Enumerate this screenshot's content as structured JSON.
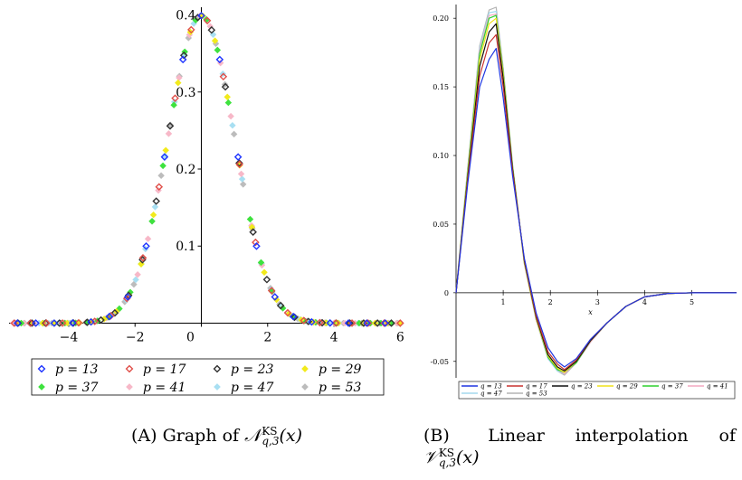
{
  "colors": {
    "p13": "#1f35ff",
    "p17": "#e0504a",
    "p23": "#333333",
    "p29": "#f2ea1c",
    "p37": "#3ee23e",
    "p41": "#f7b8c8",
    "p47": "#a8dff2",
    "p53": "#bcbcbc",
    "q13": "#1f35e0",
    "q17": "#c8322e",
    "q23": "#111111",
    "q29": "#f0e21a",
    "q37": "#2fd02f",
    "q41": "#f4a9c0",
    "q47": "#a3d9ee",
    "q53": "#b4b4b4"
  },
  "chart_data": [
    {
      "type": "scatter",
      "title": "",
      "xlabel": "",
      "ylabel": "",
      "xlim": [
        -5.8,
        6.1
      ],
      "ylim": [
        -0.01,
        0.41
      ],
      "xticks": [
        "-4",
        "-2",
        "0",
        "2",
        "4",
        "6"
      ],
      "yticks": [
        "0.1",
        "0.2",
        "0.3",
        "0.4"
      ],
      "legend_position": "bottom",
      "series": [
        {
          "name": "p = 13",
          "marker": "diamond-open"
        },
        {
          "name": "p = 17",
          "marker": "diamond-open"
        },
        {
          "name": "p = 23",
          "marker": "diamond-open"
        },
        {
          "name": "p = 29",
          "marker": "diamond"
        },
        {
          "name": "p = 37",
          "marker": "diamond"
        },
        {
          "name": "p = 41",
          "marker": "diamond"
        },
        {
          "name": "p = 47",
          "marker": "diamond"
        },
        {
          "name": "p = 53",
          "marker": "diamond"
        }
      ],
      "points_function": "standard normal density 0.399*exp(-x^2/2), sampled at spacing 2/sqrt(p) for each p"
    },
    {
      "type": "line",
      "title": "",
      "xlabel": "x",
      "ylabel": "",
      "xlim": [
        0,
        5.95
      ],
      "ylim": [
        -0.062,
        0.21
      ],
      "xticks": [
        "1",
        "2",
        "3",
        "4",
        "5"
      ],
      "yticks": [
        "-0.05",
        "0",
        "0.05",
        "0.10",
        "0.15",
        "0.20"
      ],
      "legend_position": "bottom",
      "x": [
        0,
        0.25,
        0.5,
        0.7,
        0.85,
        1.0,
        1.2,
        1.45,
        1.7,
        1.95,
        2.15,
        2.3,
        2.55,
        2.85,
        3.2,
        3.6,
        4.0,
        4.5,
        5.0,
        5.95
      ],
      "series": [
        {
          "name": "q = 13",
          "values": [
            0,
            0.08,
            0.15,
            0.17,
            0.178,
            0.142,
            0.085,
            0.025,
            -0.015,
            -0.04,
            -0.05,
            -0.054,
            -0.048,
            -0.034,
            -0.022,
            -0.01,
            -0.003,
            -0.0005,
            0,
            0
          ]
        },
        {
          "name": "q = 17",
          "values": [
            0,
            0.083,
            0.158,
            0.182,
            0.188,
            0.15,
            0.088,
            0.024,
            -0.017,
            -0.043,
            -0.052,
            -0.056,
            -0.049,
            -0.034,
            -0.022,
            -0.01,
            -0.003,
            -0.0005,
            0,
            0
          ]
        },
        {
          "name": "q = 23",
          "values": [
            0,
            0.085,
            0.165,
            0.19,
            0.196,
            0.156,
            0.09,
            0.023,
            -0.018,
            -0.045,
            -0.054,
            -0.057,
            -0.05,
            -0.035,
            -0.022,
            -0.01,
            -0.003,
            -0.0005,
            0,
            0
          ]
        },
        {
          "name": "q = 29",
          "values": [
            0,
            0.087,
            0.17,
            0.196,
            0.2,
            0.159,
            0.091,
            0.022,
            -0.019,
            -0.046,
            -0.055,
            -0.058,
            -0.05,
            -0.035,
            -0.022,
            -0.01,
            -0.003,
            -0.0005,
            0,
            0
          ]
        },
        {
          "name": "q = 37",
          "values": [
            0,
            0.089,
            0.174,
            0.2,
            0.202,
            0.161,
            0.092,
            0.022,
            -0.019,
            -0.047,
            -0.056,
            -0.058,
            -0.051,
            -0.035,
            -0.022,
            -0.01,
            -0.003,
            -0.0005,
            0,
            0
          ]
        },
        {
          "name": "q = 41",
          "values": [
            0,
            0.09,
            0.176,
            0.202,
            0.203,
            0.162,
            0.092,
            0.021,
            -0.02,
            -0.047,
            -0.056,
            -0.059,
            -0.051,
            -0.036,
            -0.022,
            -0.01,
            -0.003,
            -0.0005,
            0,
            0
          ]
        },
        {
          "name": "q = 47",
          "values": [
            0,
            0.091,
            0.178,
            0.204,
            0.205,
            0.163,
            0.093,
            0.021,
            -0.02,
            -0.048,
            -0.057,
            -0.059,
            -0.051,
            -0.036,
            -0.022,
            -0.01,
            -0.003,
            -0.0005,
            0,
            0
          ]
        },
        {
          "name": "q = 53",
          "values": [
            0,
            0.092,
            0.18,
            0.206,
            0.208,
            0.164,
            0.093,
            0.021,
            -0.02,
            -0.048,
            -0.057,
            -0.06,
            -0.051,
            -0.036,
            -0.022,
            -0.01,
            -0.003,
            -0.0005,
            0,
            0
          ]
        }
      ]
    }
  ],
  "captions": {
    "a_label": "(A)",
    "a_text": "Graph of",
    "a_math": "𝒩",
    "a_sup": "KS",
    "a_sub": "q,3",
    "a_arg": "(x)",
    "b_label": "(B)",
    "b_text": "Linear interpolation of",
    "b_math": "𝒱",
    "b_sup": "KS",
    "b_sub": "q,3",
    "b_arg": "(x)"
  }
}
